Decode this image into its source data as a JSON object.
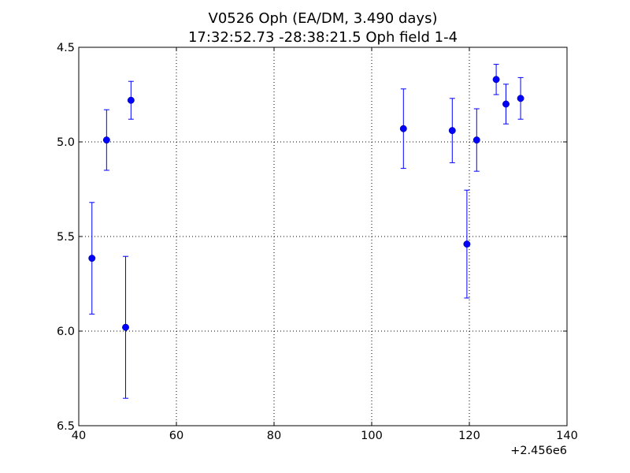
{
  "chart_data": {
    "type": "scatter",
    "title": [
      "V0526 Oph (EA/DM, 3.490 days)",
      "17:32:52.73 -28:38:21.5 Oph field 1-4"
    ],
    "xlabel": "",
    "ylabel": "",
    "x_offset_label": "+2.456e6",
    "xlim": [
      40,
      140
    ],
    "ylim": [
      4.5,
      6.5
    ],
    "y_inverted": true,
    "grid": true,
    "x_ticks": [
      40,
      60,
      80,
      100,
      120,
      140
    ],
    "x_tick_labels": [
      "40",
      "60",
      "80",
      "100",
      "120",
      "140"
    ],
    "y_ticks": [
      4.5,
      5.0,
      5.5,
      6.0,
      6.5
    ],
    "y_tick_labels": [
      "4.5",
      "5.0",
      "5.5",
      "6.0",
      "6.5"
    ],
    "marker_color": "#0000ff",
    "series": [
      {
        "points": [
          {
            "x": 42.7,
            "y": 5.615,
            "err": 0.295
          },
          {
            "x": 45.7,
            "y": 4.99,
            "err": 0.16
          },
          {
            "x": 49.6,
            "y": 5.98,
            "err": 0.375
          },
          {
            "x": 50.7,
            "y": 4.78,
            "err": 0.1
          },
          {
            "x": 106.5,
            "y": 4.93,
            "err": 0.21
          },
          {
            "x": 116.5,
            "y": 4.94,
            "err": 0.17
          },
          {
            "x": 119.5,
            "y": 5.54,
            "err": 0.285
          },
          {
            "x": 121.5,
            "y": 4.99,
            "err": 0.165
          },
          {
            "x": 125.5,
            "y": 4.67,
            "err": 0.08
          },
          {
            "x": 127.5,
            "y": 4.8,
            "err": 0.105
          },
          {
            "x": 130.5,
            "y": 4.77,
            "err": 0.11
          }
        ]
      }
    ]
  }
}
